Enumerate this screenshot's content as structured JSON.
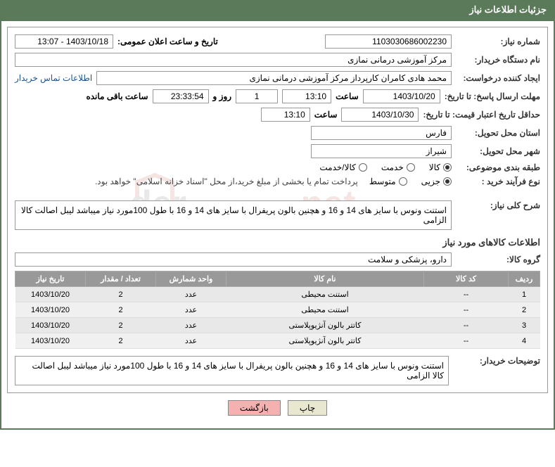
{
  "header": {
    "title": "جزئیات اطلاعات نیاز"
  },
  "form": {
    "need_number": {
      "label": "شماره نیاز:",
      "value": "1103030686002230"
    },
    "announce_datetime": {
      "label": "تاریخ و ساعت اعلان عمومی:",
      "value": "1403/10/18 - 13:07"
    },
    "buyer_org": {
      "label": "نام دستگاه خریدار:",
      "value": "مرکز آموزشی درمانی نمازی"
    },
    "requester": {
      "label": "ایجاد کننده درخواست:",
      "value": "محمد هادی کامران کارپرداز مرکز آموزشی درمانی نمازی"
    },
    "buyer_contact_link": "اطلاعات تماس خریدار",
    "deadline": {
      "label": "مهلت ارسال پاسخ: تا تاریخ:",
      "date": "1403/10/20",
      "time_label": "ساعت",
      "time": "13:10",
      "days": "1",
      "days_label": "روز و",
      "remaining_time": "23:33:54",
      "remaining_label": "ساعت باقی مانده"
    },
    "min_validity": {
      "label": "حداقل تاریخ اعتبار قیمت: تا تاریخ:",
      "date": "1403/10/30",
      "time_label": "ساعت",
      "time": "13:10"
    },
    "province": {
      "label": "استان محل تحویل:",
      "value": "فارس"
    },
    "city": {
      "label": "شهر محل تحویل:",
      "value": "شیراز"
    },
    "category": {
      "label": "طبقه بندی موضوعی:",
      "options": [
        "کالا",
        "خدمت",
        "کالا/خدمت"
      ],
      "selected": 0
    },
    "process_type": {
      "label": "نوع فرآیند خرید :",
      "options": [
        "جزیی",
        "متوسط"
      ],
      "selected": 0,
      "note": "پرداخت تمام یا بخشی از مبلغ خرید،از محل \"اسناد خزانه اسلامی\" خواهد بود."
    },
    "need_desc": {
      "label": "شرح کلی نیاز:",
      "value": "استنت ونوس با سایز های 14 و 16 و هچنین بالون پریفرال با سایز های 14 و 16 با طول 100مورد نیاز میباشد لیبل اصالت کالا الزامی"
    },
    "items_section_title": "اطلاعات کالاهای مورد نیاز",
    "goods_group": {
      "label": "گروه کالا:",
      "value": "دارو، پزشکی و سلامت"
    },
    "table": {
      "headers": [
        "ردیف",
        "کد کالا",
        "نام کالا",
        "واحد شمارش",
        "تعداد / مقدار",
        "تاریخ نیاز"
      ],
      "rows": [
        [
          "1",
          "--",
          "استنت محیطی",
          "عدد",
          "2",
          "1403/10/20"
        ],
        [
          "2",
          "--",
          "استنت محیطی",
          "عدد",
          "2",
          "1403/10/20"
        ],
        [
          "3",
          "--",
          "کاتتر بالون آنژیوپلاستی",
          "عدد",
          "2",
          "1403/10/20"
        ],
        [
          "4",
          "--",
          "کاتتر بالون آنژیوپلاستی",
          "عدد",
          "2",
          "1403/10/20"
        ]
      ]
    },
    "buyer_notes": {
      "label": "توضیحات خریدار:",
      "value": "استنت ونوس با سایز های 14 و 16 و هچنین بالون پریفرال با سایز های 14 و 16 با طول 100مورد نیاز میباشد لیبل اصالت کالا الزامی"
    }
  },
  "actions": {
    "print": "چاپ",
    "back": "بازگشت"
  },
  "colors": {
    "header_bg": "#5a7a5a",
    "th_bg": "#999999",
    "btn_back_bg": "#f5b0b0",
    "btn_print_bg": "#e8e8d0"
  }
}
